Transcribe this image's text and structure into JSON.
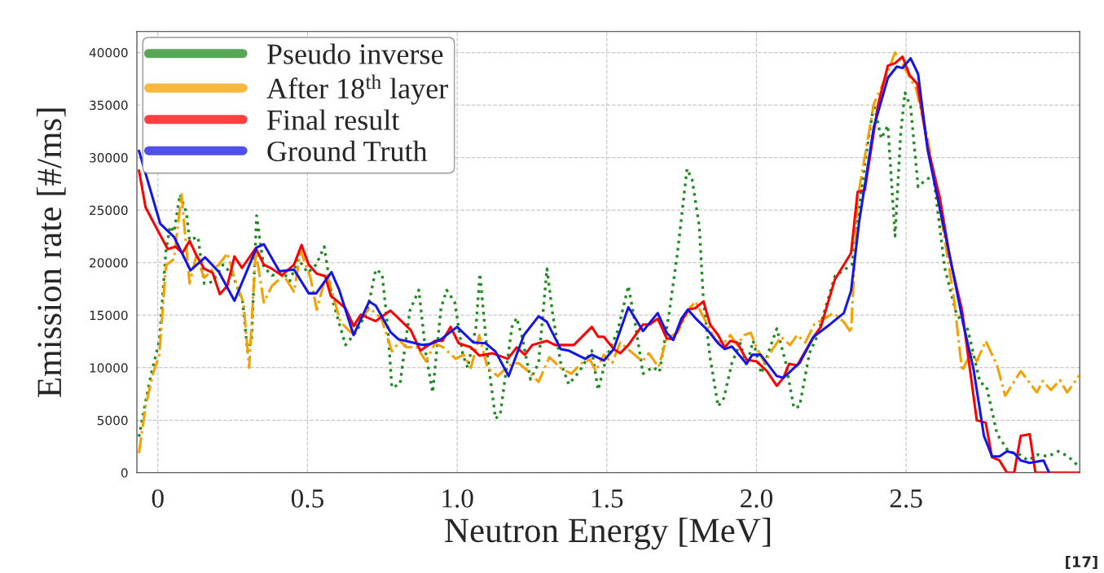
{
  "chart_data": {
    "type": "line",
    "xlabel": "Neutron Energy [MeV]",
    "ylabel": "Emission rate [#/ms]",
    "xlim": [
      -0.07,
      3.08
    ],
    "ylim": [
      0,
      42000
    ],
    "xticks": [
      0,
      {
        "value": 0.5,
        "label": "0.5"
      },
      {
        "value": 1,
        "label": "1.0"
      },
      {
        "value": 1.5,
        "label": "1.5"
      },
      {
        "value": 2,
        "label": "2.0"
      },
      {
        "value": 2.5,
        "label": "2.5"
      }
    ],
    "yticks": [
      0,
      5000,
      10000,
      15000,
      20000,
      25000,
      30000,
      35000,
      40000
    ],
    "grid": true,
    "legend": "top left",
    "annotations": [
      "[17]"
    ],
    "series": [
      {
        "name": "Pseudo inverse",
        "color": "#1f8a1f",
        "line_style": "dotted",
        "x": [
          -0.063,
          -0.044,
          -0.022,
          0.005,
          0.027,
          0.041,
          0.054,
          0.074,
          0.095,
          0.106,
          0.134,
          0.155,
          0.183,
          0.218,
          0.251,
          0.283,
          0.3,
          0.313,
          0.33,
          0.341,
          0.354,
          0.381,
          0.42,
          0.441,
          0.469,
          0.501,
          0.529,
          0.556,
          0.583,
          0.627,
          0.665,
          0.7,
          0.728,
          0.749,
          0.768,
          0.782,
          0.809,
          0.842,
          0.872,
          0.896,
          0.918,
          0.946,
          0.965,
          0.992,
          1.019,
          1.035,
          1.063,
          1.076,
          1.101,
          1.128,
          1.144,
          1.183,
          1.199,
          1.218,
          1.245,
          1.272,
          1.3,
          1.319,
          1.346,
          1.373,
          1.409,
          1.45,
          1.471,
          1.499,
          1.537,
          1.572,
          1.594,
          1.621,
          1.654,
          1.676,
          1.708,
          1.736,
          1.768,
          1.785,
          1.809,
          1.823,
          1.845,
          1.872,
          1.891,
          1.918,
          1.946,
          1.967,
          1.989,
          2.016,
          2.041,
          2.068,
          2.098,
          2.125,
          2.144,
          2.177,
          2.202,
          2.262,
          2.319,
          2.362,
          2.392,
          2.417,
          2.439,
          2.463,
          2.482,
          2.496,
          2.515,
          2.54,
          2.564,
          2.591,
          2.629,
          2.668,
          2.706,
          2.747,
          2.768,
          2.804,
          2.842,
          2.88,
          2.907,
          2.94,
          2.975,
          3.008,
          3.041,
          3.076
        ],
        "values": [
          3430,
          6320,
          9430,
          12550,
          21130,
          23470,
          22920,
          26500,
          24800,
          22140,
          22450,
          18010,
          18170,
          19810,
          18790,
          16300,
          11540,
          12550,
          24480,
          22140,
          19570,
          18790,
          19030,
          18250,
          20350,
          19030,
          19810,
          21520,
          16450,
          12160,
          13490,
          15440,
          19340,
          18950,
          13880,
          8110,
          8420,
          15440,
          17390,
          11230,
          7640,
          15670,
          17390,
          16220,
          11230,
          9980,
          13880,
          18950,
          11230,
          5150,
          5540,
          13880,
          14740,
          12790,
          8890,
          10450,
          19420,
          15130,
          10450,
          8420,
          9670,
          11620,
          7880,
          10990,
          13570,
          17780,
          14350,
          9430,
          10060,
          9590,
          15130,
          20900,
          28930,
          27910,
          23470,
          16300,
          10990,
          6320,
          7100,
          10450,
          12320,
          10210,
          12550,
          9430,
          11540,
          13720,
          10450,
          6160,
          6320,
          11380,
          12940,
          18710,
          19810,
          29400,
          35090,
          31810,
          33060,
          22530,
          32360,
          36180,
          34850,
          27210,
          27840,
          28300,
          19490,
          15130,
          13650,
          8580,
          8270,
          3670,
          2030,
          1720,
          1170,
          1720,
          1560,
          2030,
          1560,
          620
        ]
      },
      {
        "name": "After 18$^{th}$ layer",
        "color": "#f5a000",
        "line_style": "dashdot",
        "x": [
          -0.063,
          -0.041,
          -0.016,
          0.005,
          0.027,
          0.054,
          0.079,
          0.106,
          0.128,
          0.155,
          0.183,
          0.204,
          0.232,
          0.259,
          0.286,
          0.305,
          0.327,
          0.354,
          0.381,
          0.42,
          0.455,
          0.477,
          0.51,
          0.531,
          0.564,
          0.61,
          0.646,
          0.678,
          0.708,
          0.747,
          0.782,
          0.809,
          0.831,
          0.864,
          0.896,
          0.926,
          0.954,
          0.995,
          1.022,
          1.046,
          1.074,
          1.101,
          1.136,
          1.172,
          1.204,
          1.237,
          1.272,
          1.308,
          1.346,
          1.381,
          1.417,
          1.444,
          1.463,
          1.49,
          1.518,
          1.545,
          1.58,
          1.619,
          1.64,
          1.673,
          1.7,
          1.736,
          1.777,
          1.796,
          1.826,
          1.864,
          1.891,
          1.913,
          1.935,
          1.959,
          1.981,
          2.0,
          2.027,
          2.054,
          2.082,
          2.112,
          2.136,
          2.163,
          2.193,
          2.226,
          2.253,
          2.267,
          2.292,
          2.316,
          2.338,
          2.392,
          2.431,
          2.463,
          2.488,
          2.534,
          2.572,
          2.621,
          2.659,
          2.687,
          2.717,
          2.736,
          2.766,
          2.804,
          2.831,
          2.883,
          2.937,
          2.956,
          2.984,
          3.014,
          3.038,
          3.079
        ],
        "values": [
          1870,
          6320,
          9430,
          11230,
          19730,
          20350,
          26500,
          18010,
          20590,
          18560,
          19340,
          19810,
          20900,
          18250,
          16220,
          9980,
          21130,
          16220,
          17780,
          18790,
          17230,
          21130,
          18560,
          15520,
          19030,
          14350,
          13330,
          14660,
          15670,
          14660,
          11540,
          12550,
          11930,
          12010,
          10600,
          12320,
          11930,
          10840,
          11230,
          9980,
          13100,
          9980,
          9200,
          10210,
          10450,
          9670,
          8650,
          10990,
          9980,
          9430,
          10450,
          10760,
          9670,
          11230,
          10450,
          12400,
          11540,
          10600,
          11380,
          10060,
          12790,
          13330,
          15670,
          16300,
          14660,
          12550,
          12320,
          13100,
          12160,
          13100,
          13330,
          11930,
          10450,
          11770,
          12940,
          12160,
          13100,
          12400,
          14110,
          14660,
          15130,
          14970,
          14350,
          13330,
          26120,
          35090,
          37580,
          40000,
          38910,
          36490,
          31810,
          23630,
          16760,
          9670,
          11460,
          10600,
          12550,
          10210,
          7330,
          9670,
          7640,
          8730,
          7880,
          8810,
          7640,
          9280
        ]
      },
      {
        "name": "Final result",
        "color": "#ff0000",
        "line_style": "solid",
        "x": [
          -0.063,
          -0.041,
          -0.008,
          0.033,
          0.06,
          0.082,
          0.106,
          0.128,
          0.155,
          0.183,
          0.207,
          0.232,
          0.256,
          0.281,
          0.327,
          0.354,
          0.381,
          0.414,
          0.455,
          0.48,
          0.504,
          0.531,
          0.559,
          0.578,
          0.627,
          0.654,
          0.678,
          0.728,
          0.777,
          0.845,
          0.877,
          0.926,
          0.951,
          0.978,
          1.005,
          1.046,
          1.074,
          1.117,
          1.169,
          1.199,
          1.226,
          1.251,
          1.3,
          1.327,
          1.39,
          1.45,
          1.471,
          1.49,
          1.523,
          1.545,
          1.572,
          1.621,
          1.643,
          1.67,
          1.7,
          1.722,
          1.749,
          1.771,
          1.796,
          1.823,
          1.845,
          1.872,
          1.894,
          1.913,
          1.935,
          1.967,
          2.0,
          2.035,
          2.068,
          2.09,
          2.109,
          2.136,
          2.191,
          2.215,
          2.262,
          2.316,
          2.338,
          2.362,
          2.406,
          2.439,
          2.463,
          2.488,
          2.512,
          2.537,
          2.572,
          2.613,
          2.649,
          2.687,
          2.736,
          2.766,
          2.787,
          2.812,
          2.837,
          2.861,
          2.883,
          2.913,
          2.932,
          3.079
        ],
        "values": [
          28770,
          25260,
          23470,
          21290,
          21520,
          20900,
          22070,
          20740,
          19420,
          19030,
          17000,
          17780,
          20590,
          19490,
          21370,
          19810,
          19420,
          18790,
          19810,
          21680,
          19810,
          18950,
          18710,
          16840,
          15670,
          13960,
          15050,
          14430,
          15440,
          13570,
          11620,
          12550,
          12550,
          13880,
          12320,
          11930,
          11150,
          11380,
          10840,
          11930,
          11230,
          12160,
          12550,
          12160,
          12160,
          13880,
          12940,
          12940,
          11770,
          11380,
          12160,
          14110,
          14110,
          14660,
          12790,
          12710,
          14350,
          15520,
          15670,
          16300,
          14110,
          13100,
          11930,
          12550,
          12400,
          10760,
          10600,
          9670,
          8270,
          9040,
          10370,
          10210,
          12940,
          13880,
          18400,
          20900,
          26740,
          26900,
          35010,
          38750,
          38990,
          39610,
          37820,
          37040,
          31030,
          26120,
          20040,
          15440,
          4990,
          4760,
          1480,
          1170,
          0,
          0,
          3510,
          3670,
          0,
          0
        ]
      },
      {
        "name": "Ground Truth",
        "color": "#1515e6",
        "line_style": "solid",
        "x": [
          -0.063,
          0.008,
          0.054,
          0.109,
          0.158,
          0.204,
          0.256,
          0.33,
          0.354,
          0.406,
          0.455,
          0.504,
          0.529,
          0.58,
          0.605,
          0.654,
          0.706,
          0.728,
          0.777,
          0.804,
          0.85,
          0.883,
          0.91,
          0.946,
          1.0,
          1.054,
          1.095,
          1.128,
          1.172,
          1.223,
          1.272,
          1.3,
          1.346,
          1.373,
          1.428,
          1.45,
          1.49,
          1.523,
          1.572,
          1.621,
          1.67,
          1.7,
          1.722,
          1.749,
          1.771,
          1.798,
          1.837,
          1.872,
          1.894,
          1.918,
          1.967,
          1.986,
          2.014,
          2.068,
          2.09,
          2.144,
          2.191,
          2.245,
          2.292,
          2.316,
          2.343,
          2.392,
          2.439,
          2.469,
          2.488,
          2.515,
          2.54,
          2.572,
          2.61,
          2.649,
          2.692,
          2.725,
          2.76,
          2.787,
          2.812,
          2.837,
          2.861,
          2.883,
          2.913,
          2.959,
          2.978
        ],
        "values": [
          30640,
          23700,
          22450,
          19260,
          20500,
          19100,
          16370,
          21440,
          21750,
          19180,
          19340,
          17080,
          17080,
          19100,
          17470,
          13100,
          16300,
          15900,
          13400,
          12700,
          12400,
          12160,
          12240,
          12700,
          13880,
          12400,
          12320,
          11540,
          9200,
          13100,
          14890,
          14350,
          11770,
          11620,
          10840,
          11230,
          10680,
          11770,
          15750,
          13490,
          15200,
          13330,
          12630,
          14660,
          15520,
          14660,
          13570,
          12320,
          11770,
          12010,
          10370,
          11230,
          11230,
          9200,
          9040,
          10450,
          12940,
          14110,
          15200,
          17310,
          23860,
          32900,
          37580,
          38670,
          38520,
          39450,
          37970,
          30720,
          25500,
          20200,
          14040,
          9900,
          3510,
          1560,
          1560,
          2030,
          1870,
          1170,
          940,
          1170,
          0
        ]
      }
    ]
  }
}
